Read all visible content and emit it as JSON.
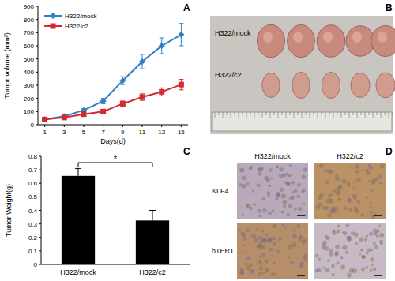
{
  "panel_labels": [
    "A",
    "B",
    "C",
    "D"
  ],
  "chart_data": [
    {
      "type": "line",
      "x_label": "Days(d)",
      "y_label": "Tumor volume (mm³)",
      "x": [
        1,
        3,
        5,
        7,
        9,
        11,
        13,
        15
      ],
      "xlim": [
        0.3,
        15.7
      ],
      "xticks": [
        1,
        3,
        5,
        7,
        9,
        11,
        13,
        15
      ],
      "ylim": [
        0,
        900
      ],
      "yticks": [
        0,
        100,
        200,
        300,
        400,
        500,
        600,
        700,
        800,
        900
      ],
      "legend": "upper left",
      "series": [
        {
          "name": "H322/mock",
          "color": "#2f7fc8",
          "marker": "diamond",
          "values": [
            40,
            65,
            110,
            180,
            335,
            480,
            600,
            685
          ],
          "errors": [
            5,
            8,
            12,
            20,
            30,
            55,
            60,
            85
          ]
        },
        {
          "name": "H322/c2",
          "color": "#d42a2f",
          "marker": "square",
          "values": [
            40,
            55,
            80,
            100,
            160,
            210,
            250,
            305
          ],
          "errors": [
            5,
            6,
            10,
            12,
            20,
            25,
            30,
            40
          ]
        }
      ]
    },
    {
      "type": "bar",
      "y_label": "Tumor Weight(g)",
      "categories": [
        "H322/mock",
        "H322/c2"
      ],
      "values": [
        0.655,
        0.325
      ],
      "errors": [
        0.055,
        0.075
      ],
      "color": "#000000",
      "ylim": [
        0,
        0.8
      ],
      "yticks": [
        0,
        0.1,
        0.2,
        0.3,
        0.4,
        0.5,
        0.6,
        0.7,
        0.8
      ],
      "annotations": [
        "*"
      ]
    }
  ],
  "photo_panels": {
    "B": {
      "rows": [
        "H322/mock",
        "H322/c2"
      ]
    },
    "D": {
      "columns": [
        "H322/mock",
        "H322/c2"
      ],
      "rows": [
        "KLF4",
        "hTERT"
      ]
    }
  }
}
